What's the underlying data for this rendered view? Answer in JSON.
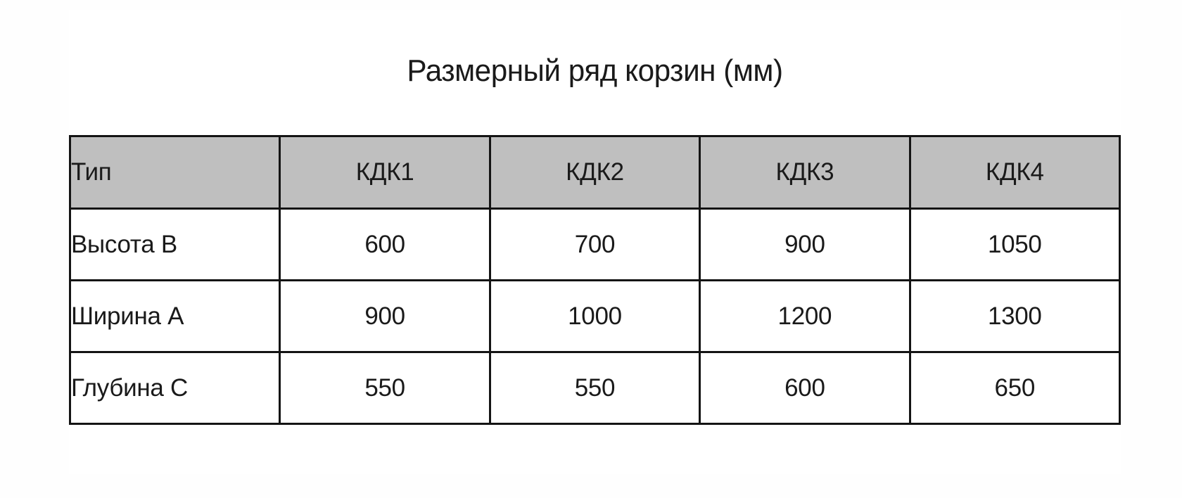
{
  "title": "Размерный ряд корзин (мм)",
  "colors": {
    "header_bg": "#bfbfbf",
    "border": "#141414",
    "text": "#1a1a1a",
    "background": "#ffffff"
  },
  "table": {
    "header": [
      "Тип",
      "КДК1",
      "КДК2",
      "КДК3",
      "КДК4"
    ],
    "rows": [
      {
        "label": "Высота B",
        "values": [
          "600",
          "700",
          "900",
          "1050"
        ]
      },
      {
        "label": "Ширина A",
        "values": [
          "900",
          "1000",
          "1200",
          "1300"
        ]
      },
      {
        "label": "Глубина C",
        "values": [
          "550",
          "550",
          "600",
          "650"
        ]
      }
    ]
  },
  "chart_data": {
    "type": "table",
    "title": "Размерный ряд корзин (мм)",
    "categories": [
      "КДК1",
      "КДК2",
      "КДК3",
      "КДК4"
    ],
    "series": [
      {
        "name": "Высота B",
        "values": [
          600,
          700,
          900,
          1050
        ]
      },
      {
        "name": "Ширина A",
        "values": [
          900,
          1000,
          1200,
          1300
        ]
      },
      {
        "name": "Глубина C",
        "values": [
          550,
          550,
          600,
          650
        ]
      }
    ]
  }
}
